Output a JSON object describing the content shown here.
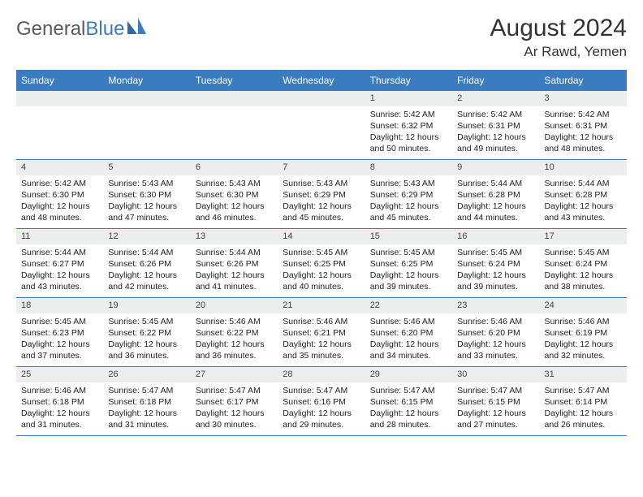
{
  "logo": {
    "text1": "General",
    "text2": "Blue"
  },
  "title": {
    "month": "August 2024",
    "location": "Ar Rawd, Yemen"
  },
  "colors": {
    "header_bg": "#3b7bbf",
    "header_text": "#ffffff",
    "daynum_bg": "#eceded",
    "border": "#3b7bbf",
    "logo_gray": "#5a5a5a",
    "logo_blue": "#3b7bbf"
  },
  "days": [
    "Sunday",
    "Monday",
    "Tuesday",
    "Wednesday",
    "Thursday",
    "Friday",
    "Saturday"
  ],
  "weeks": [
    [
      {
        "n": "",
        "sr": "",
        "ss": "",
        "dl": ""
      },
      {
        "n": "",
        "sr": "",
        "ss": "",
        "dl": ""
      },
      {
        "n": "",
        "sr": "",
        "ss": "",
        "dl": ""
      },
      {
        "n": "",
        "sr": "",
        "ss": "",
        "dl": ""
      },
      {
        "n": "1",
        "sr": "Sunrise: 5:42 AM",
        "ss": "Sunset: 6:32 PM",
        "dl": "Daylight: 12 hours and 50 minutes."
      },
      {
        "n": "2",
        "sr": "Sunrise: 5:42 AM",
        "ss": "Sunset: 6:31 PM",
        "dl": "Daylight: 12 hours and 49 minutes."
      },
      {
        "n": "3",
        "sr": "Sunrise: 5:42 AM",
        "ss": "Sunset: 6:31 PM",
        "dl": "Daylight: 12 hours and 48 minutes."
      }
    ],
    [
      {
        "n": "4",
        "sr": "Sunrise: 5:42 AM",
        "ss": "Sunset: 6:30 PM",
        "dl": "Daylight: 12 hours and 48 minutes."
      },
      {
        "n": "5",
        "sr": "Sunrise: 5:43 AM",
        "ss": "Sunset: 6:30 PM",
        "dl": "Daylight: 12 hours and 47 minutes."
      },
      {
        "n": "6",
        "sr": "Sunrise: 5:43 AM",
        "ss": "Sunset: 6:30 PM",
        "dl": "Daylight: 12 hours and 46 minutes."
      },
      {
        "n": "7",
        "sr": "Sunrise: 5:43 AM",
        "ss": "Sunset: 6:29 PM",
        "dl": "Daylight: 12 hours and 45 minutes."
      },
      {
        "n": "8",
        "sr": "Sunrise: 5:43 AM",
        "ss": "Sunset: 6:29 PM",
        "dl": "Daylight: 12 hours and 45 minutes."
      },
      {
        "n": "9",
        "sr": "Sunrise: 5:44 AM",
        "ss": "Sunset: 6:28 PM",
        "dl": "Daylight: 12 hours and 44 minutes."
      },
      {
        "n": "10",
        "sr": "Sunrise: 5:44 AM",
        "ss": "Sunset: 6:28 PM",
        "dl": "Daylight: 12 hours and 43 minutes."
      }
    ],
    [
      {
        "n": "11",
        "sr": "Sunrise: 5:44 AM",
        "ss": "Sunset: 6:27 PM",
        "dl": "Daylight: 12 hours and 43 minutes."
      },
      {
        "n": "12",
        "sr": "Sunrise: 5:44 AM",
        "ss": "Sunset: 6:26 PM",
        "dl": "Daylight: 12 hours and 42 minutes."
      },
      {
        "n": "13",
        "sr": "Sunrise: 5:44 AM",
        "ss": "Sunset: 6:26 PM",
        "dl": "Daylight: 12 hours and 41 minutes."
      },
      {
        "n": "14",
        "sr": "Sunrise: 5:45 AM",
        "ss": "Sunset: 6:25 PM",
        "dl": "Daylight: 12 hours and 40 minutes."
      },
      {
        "n": "15",
        "sr": "Sunrise: 5:45 AM",
        "ss": "Sunset: 6:25 PM",
        "dl": "Daylight: 12 hours and 39 minutes."
      },
      {
        "n": "16",
        "sr": "Sunrise: 5:45 AM",
        "ss": "Sunset: 6:24 PM",
        "dl": "Daylight: 12 hours and 39 minutes."
      },
      {
        "n": "17",
        "sr": "Sunrise: 5:45 AM",
        "ss": "Sunset: 6:24 PM",
        "dl": "Daylight: 12 hours and 38 minutes."
      }
    ],
    [
      {
        "n": "18",
        "sr": "Sunrise: 5:45 AM",
        "ss": "Sunset: 6:23 PM",
        "dl": "Daylight: 12 hours and 37 minutes."
      },
      {
        "n": "19",
        "sr": "Sunrise: 5:45 AM",
        "ss": "Sunset: 6:22 PM",
        "dl": "Daylight: 12 hours and 36 minutes."
      },
      {
        "n": "20",
        "sr": "Sunrise: 5:46 AM",
        "ss": "Sunset: 6:22 PM",
        "dl": "Daylight: 12 hours and 36 minutes."
      },
      {
        "n": "21",
        "sr": "Sunrise: 5:46 AM",
        "ss": "Sunset: 6:21 PM",
        "dl": "Daylight: 12 hours and 35 minutes."
      },
      {
        "n": "22",
        "sr": "Sunrise: 5:46 AM",
        "ss": "Sunset: 6:20 PM",
        "dl": "Daylight: 12 hours and 34 minutes."
      },
      {
        "n": "23",
        "sr": "Sunrise: 5:46 AM",
        "ss": "Sunset: 6:20 PM",
        "dl": "Daylight: 12 hours and 33 minutes."
      },
      {
        "n": "24",
        "sr": "Sunrise: 5:46 AM",
        "ss": "Sunset: 6:19 PM",
        "dl": "Daylight: 12 hours and 32 minutes."
      }
    ],
    [
      {
        "n": "25",
        "sr": "Sunrise: 5:46 AM",
        "ss": "Sunset: 6:18 PM",
        "dl": "Daylight: 12 hours and 31 minutes."
      },
      {
        "n": "26",
        "sr": "Sunrise: 5:47 AM",
        "ss": "Sunset: 6:18 PM",
        "dl": "Daylight: 12 hours and 31 minutes."
      },
      {
        "n": "27",
        "sr": "Sunrise: 5:47 AM",
        "ss": "Sunset: 6:17 PM",
        "dl": "Daylight: 12 hours and 30 minutes."
      },
      {
        "n": "28",
        "sr": "Sunrise: 5:47 AM",
        "ss": "Sunset: 6:16 PM",
        "dl": "Daylight: 12 hours and 29 minutes."
      },
      {
        "n": "29",
        "sr": "Sunrise: 5:47 AM",
        "ss": "Sunset: 6:15 PM",
        "dl": "Daylight: 12 hours and 28 minutes."
      },
      {
        "n": "30",
        "sr": "Sunrise: 5:47 AM",
        "ss": "Sunset: 6:15 PM",
        "dl": "Daylight: 12 hours and 27 minutes."
      },
      {
        "n": "31",
        "sr": "Sunrise: 5:47 AM",
        "ss": "Sunset: 6:14 PM",
        "dl": "Daylight: 12 hours and 26 minutes."
      }
    ]
  ]
}
